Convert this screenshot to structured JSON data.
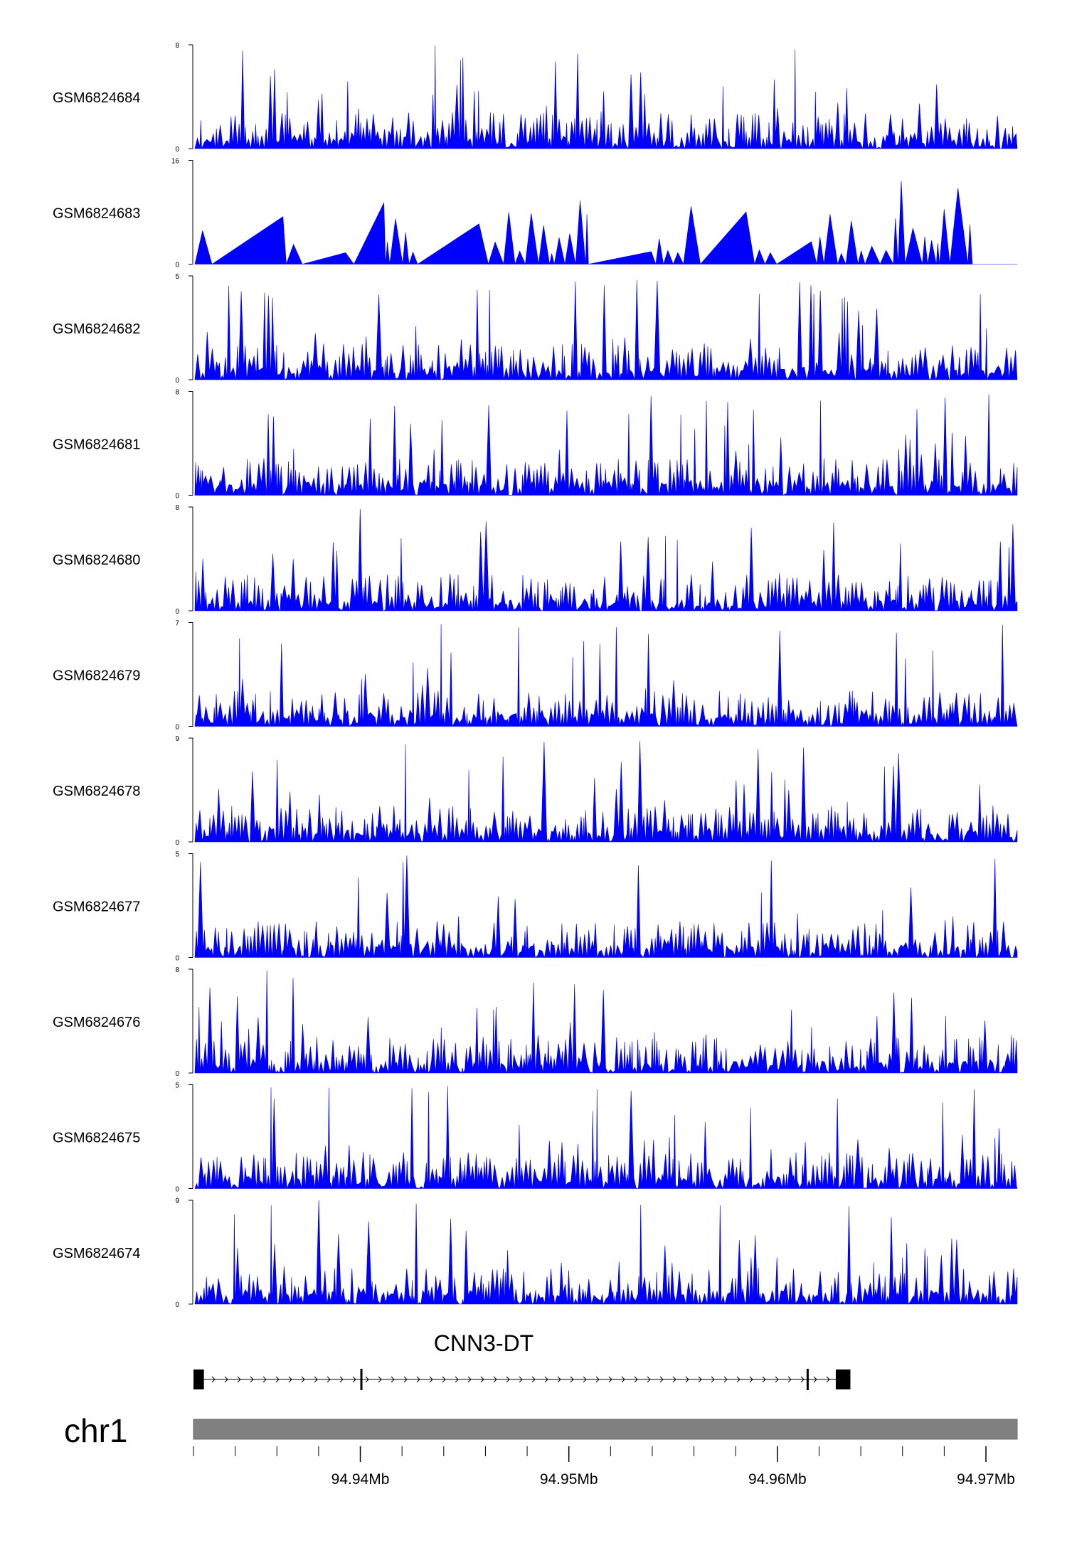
{
  "chart_data": {
    "type": "area",
    "color": "#0000ff",
    "x_unit": "Mb",
    "xlim": [
      94.932,
      94.9715
    ],
    "xticks": [
      {
        "value": 94.94,
        "label": "94.94Mb"
      },
      {
        "value": 94.95,
        "label": "94.95Mb"
      },
      {
        "value": 94.96,
        "label": "94.96Mb"
      },
      {
        "value": 94.97,
        "label": "94.97Mb"
      }
    ],
    "tracks": [
      {
        "name": "GSM6824684",
        "ymax": 8,
        "ymin_label": "0",
        "ymax_label": "8"
      },
      {
        "name": "GSM6824683",
        "ymax": 16,
        "ymin_label": "0",
        "ymax_label": "16"
      },
      {
        "name": "GSM6824682",
        "ymax": 5,
        "ymin_label": "0",
        "ymax_label": "5"
      },
      {
        "name": "GSM6824681",
        "ymax": 8,
        "ymin_label": "0",
        "ymax_label": "8"
      },
      {
        "name": "GSM6824680",
        "ymax": 8,
        "ymin_label": "0",
        "ymax_label": "8"
      },
      {
        "name": "GSM6824679",
        "ymax": 7,
        "ymin_label": "0",
        "ymax_label": "7"
      },
      {
        "name": "GSM6824678",
        "ymax": 9,
        "ymin_label": "0",
        "ymax_label": "9"
      },
      {
        "name": "GSM6824677",
        "ymax": 5,
        "ymin_label": "0",
        "ymax_label": "5"
      },
      {
        "name": "GSM6824676",
        "ymax": 8,
        "ymin_label": "0",
        "ymax_label": "8"
      },
      {
        "name": "GSM6824675",
        "ymax": 5,
        "ymin_label": "0",
        "ymax_label": "5"
      },
      {
        "name": "GSM6824674",
        "ymax": 9,
        "ymin_label": "0",
        "ymax_label": "9"
      }
    ],
    "gene": {
      "name": "CNN3-DT",
      "strand": "+",
      "start": 94.932,
      "end": 94.9635,
      "exons": [
        [
          94.932,
          94.9325
        ],
        [
          94.94,
          94.9401
        ],
        [
          94.9614,
          94.9615
        ],
        [
          94.9628,
          94.9635
        ]
      ]
    },
    "chromosome": "chr1"
  }
}
